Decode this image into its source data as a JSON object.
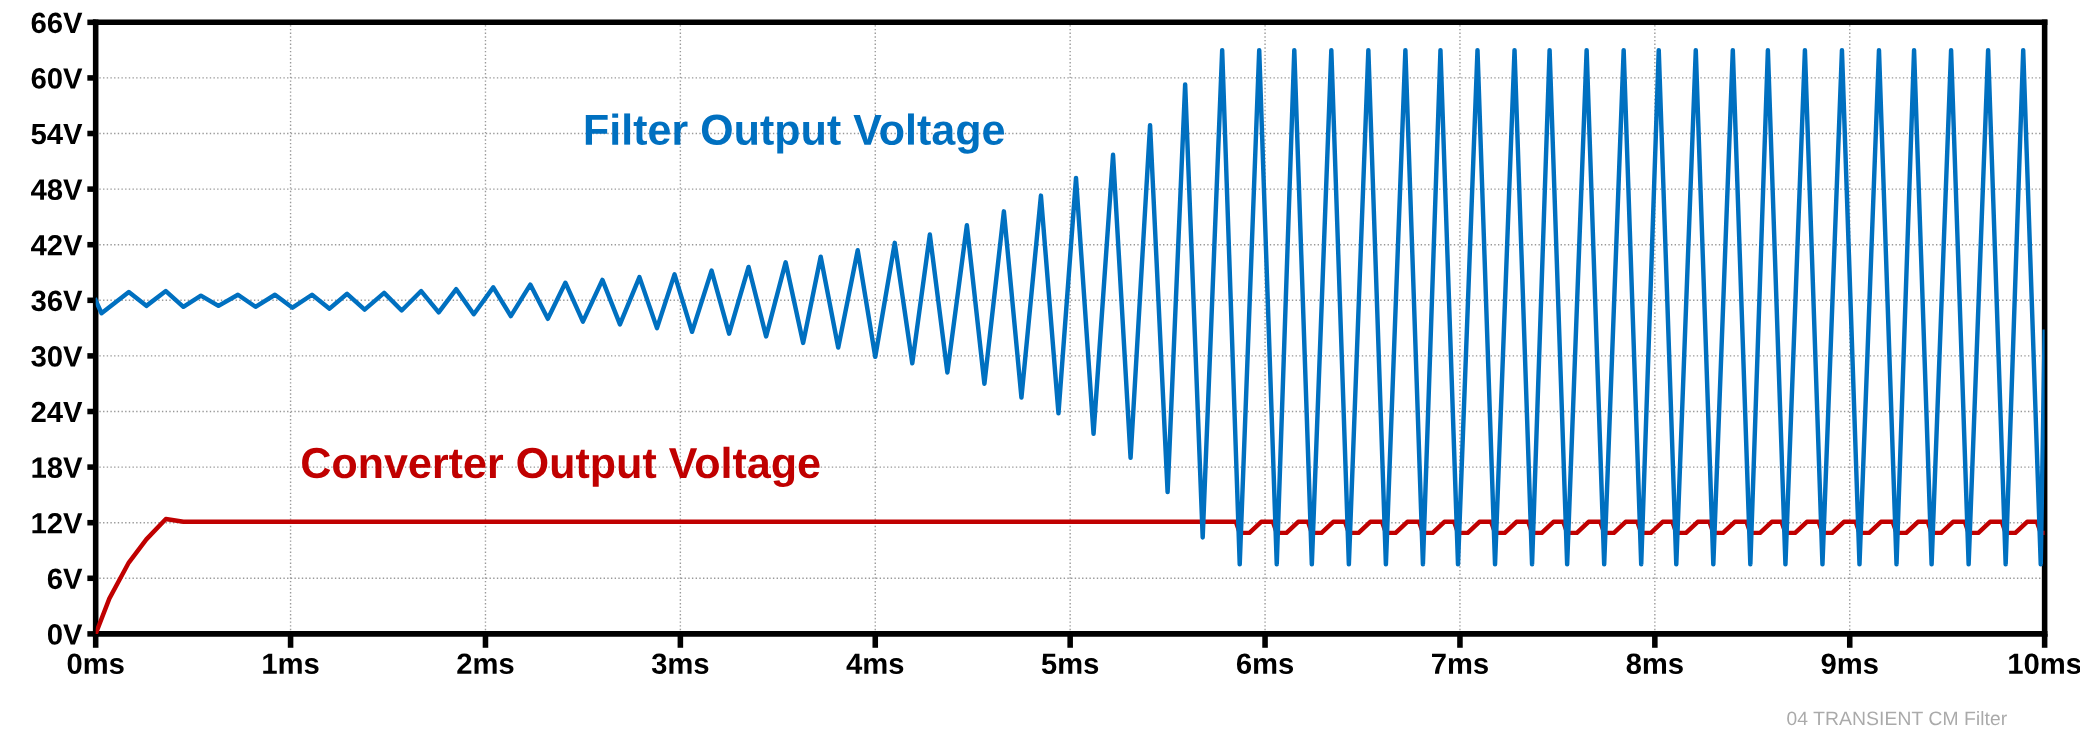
{
  "chart_data": {
    "type": "line",
    "xlim": [
      0,
      10
    ],
    "ylim": [
      0,
      66
    ],
    "xticks": [
      {
        "value": 0,
        "label": "0ms"
      },
      {
        "value": 1,
        "label": "1ms"
      },
      {
        "value": 2,
        "label": "2ms"
      },
      {
        "value": 3,
        "label": "3ms"
      },
      {
        "value": 4,
        "label": "4ms"
      },
      {
        "value": 5,
        "label": "5ms"
      },
      {
        "value": 6,
        "label": "6ms"
      },
      {
        "value": 7,
        "label": "7ms"
      },
      {
        "value": 8,
        "label": "8ms"
      },
      {
        "value": 9,
        "label": "9ms"
      },
      {
        "value": 10,
        "label": "10ms"
      }
    ],
    "yticks": [
      {
        "value": 0,
        "label": "0V"
      },
      {
        "value": 6,
        "label": "6V"
      },
      {
        "value": 12,
        "label": "12V"
      },
      {
        "value": 18,
        "label": "18V"
      },
      {
        "value": 24,
        "label": "24V"
      },
      {
        "value": 30,
        "label": "30V"
      },
      {
        "value": 36,
        "label": "36V"
      },
      {
        "value": 42,
        "label": "42V"
      },
      {
        "value": 48,
        "label": "48V"
      },
      {
        "value": 54,
        "label": "54V"
      },
      {
        "value": 60,
        "label": "60V"
      },
      {
        "value": 66,
        "label": "66V"
      }
    ],
    "grid": true,
    "legend": false,
    "marker": "none",
    "line_style": "solid",
    "annotations": [
      "04 TRANSIENT CM Filter"
    ],
    "series": [
      {
        "name": "Filter Output Voltage",
        "color": "#0070c0",
        "x": [
          0,
          0.03,
          0.17,
          0.26,
          0.36,
          0.45,
          0.54,
          0.63,
          0.73,
          0.82,
          0.92,
          1.01,
          1.11,
          1.2,
          1.29,
          1.38,
          1.48,
          1.57,
          1.67,
          1.76,
          1.85,
          1.94,
          2.04,
          2.13,
          2.23,
          2.32,
          2.41,
          2.5,
          2.6,
          2.69,
          2.79,
          2.88,
          2.97,
          3.06,
          3.16,
          3.25,
          3.35,
          3.44,
          3.54,
          3.63,
          3.72,
          3.81,
          3.91,
          4.0,
          4.1,
          4.19,
          4.28,
          4.37,
          4.47,
          4.56,
          4.66,
          4.75,
          4.85,
          4.94,
          5.03,
          5.12,
          5.22,
          5.31,
          5.41,
          5.5,
          5.59,
          5.68,
          5.78,
          5.87,
          5.97,
          6.06,
          6.15,
          6.24,
          6.34,
          6.43,
          6.53,
          6.62,
          6.72,
          6.81,
          6.9,
          6.99,
          7.09,
          7.18,
          7.28,
          7.37,
          7.46,
          7.55,
          7.65,
          7.74,
          7.84,
          7.93,
          8.02,
          8.11,
          8.21,
          8.3,
          8.4,
          8.49,
          8.58,
          8.67,
          8.77,
          8.86,
          8.96,
          9.05,
          9.15,
          9.24,
          9.33,
          9.42,
          9.52,
          9.61,
          9.71,
          9.8,
          9.89,
          9.98,
          10.0
        ],
        "values": [
          36,
          34.6,
          36.9,
          35.4,
          37.0,
          35.3,
          36.5,
          35.4,
          36.6,
          35.3,
          36.6,
          35.2,
          36.6,
          35.1,
          36.7,
          35.0,
          36.8,
          34.9,
          37.0,
          34.7,
          37.2,
          34.5,
          37.4,
          34.3,
          37.7,
          34.0,
          37.9,
          33.7,
          38.2,
          33.4,
          38.5,
          33.0,
          38.8,
          32.6,
          39.2,
          32.4,
          39.6,
          32.1,
          40.1,
          31.4,
          40.7,
          30.9,
          41.4,
          29.9,
          42.2,
          29.2,
          43.1,
          28.2,
          44.1,
          27.0,
          45.6,
          25.5,
          47.3,
          23.8,
          49.2,
          21.6,
          51.7,
          19.0,
          54.9,
          15.3,
          59.3,
          10.4,
          63.0,
          7.5,
          63.0,
          7.5,
          63.0,
          7.5,
          63.0,
          7.5,
          63.0,
          7.5,
          63.0,
          7.5,
          63.0,
          7.5,
          63.0,
          7.5,
          63.0,
          7.5,
          63.0,
          7.5,
          63.0,
          7.5,
          63.0,
          7.5,
          63.0,
          7.5,
          63.0,
          7.5,
          63.0,
          7.5,
          63.0,
          7.5,
          63.0,
          7.5,
          63.0,
          7.5,
          63.0,
          7.5,
          63.0,
          7.5,
          63.0,
          7.5,
          63.0,
          7.5,
          63.0,
          7.5,
          32.6
        ]
      },
      {
        "name": "Converter Output Voltage",
        "color": "#c00000",
        "x": [
          0,
          0.07,
          0.17,
          0.26,
          0.36,
          0.45,
          5.85,
          5.87,
          5.92,
          5.98,
          6.04,
          6.06,
          6.11,
          6.17,
          6.22,
          6.24,
          6.29,
          6.35,
          6.41,
          6.43,
          6.48,
          6.54,
          6.6,
          6.62,
          6.67,
          6.73,
          6.79,
          6.81,
          6.86,
          6.92,
          6.97,
          6.99,
          7.04,
          7.1,
          7.16,
          7.18,
          7.23,
          7.29,
          7.35,
          7.37,
          7.42,
          7.48,
          7.53,
          7.55,
          7.6,
          7.66,
          7.72,
          7.74,
          7.79,
          7.85,
          7.91,
          7.93,
          7.98,
          8.04,
          8.09,
          8.11,
          8.16,
          8.22,
          8.28,
          8.3,
          8.35,
          8.41,
          8.47,
          8.49,
          8.54,
          8.6,
          8.65,
          8.67,
          8.72,
          8.78,
          8.84,
          8.86,
          8.91,
          8.97,
          9.03,
          9.05,
          9.1,
          9.16,
          9.22,
          9.24,
          9.29,
          9.35,
          9.4,
          9.42,
          9.47,
          9.53,
          9.59,
          9.61,
          9.66,
          9.72,
          9.78,
          9.8,
          9.85,
          9.91,
          9.96,
          9.98,
          10.0
        ],
        "values": [
          0,
          3.8,
          7.7,
          10.2,
          12.4,
          12.1,
          12.1,
          10.9,
          10.9,
          12.1,
          12.1,
          10.9,
          10.9,
          12.1,
          12.1,
          10.9,
          10.9,
          12.1,
          12.1,
          10.9,
          10.9,
          12.1,
          12.1,
          10.9,
          10.9,
          12.1,
          12.1,
          10.9,
          10.9,
          12.1,
          12.1,
          10.9,
          10.9,
          12.1,
          12.1,
          10.9,
          10.9,
          12.1,
          12.1,
          10.9,
          10.9,
          12.1,
          12.1,
          10.9,
          10.9,
          12.1,
          12.1,
          10.9,
          10.9,
          12.1,
          12.1,
          10.9,
          10.9,
          12.1,
          12.1,
          10.9,
          10.9,
          12.1,
          12.1,
          10.9,
          10.9,
          12.1,
          12.1,
          10.9,
          10.9,
          12.1,
          12.1,
          10.9,
          10.9,
          12.1,
          12.1,
          10.9,
          10.9,
          12.1,
          12.1,
          10.9,
          10.9,
          12.1,
          12.1,
          10.9,
          10.9,
          12.1,
          12.1,
          10.9,
          10.9,
          12.1,
          12.1,
          10.9,
          10.9,
          12.1,
          12.1,
          10.9,
          10.9,
          12.1,
          12.1,
          10.9,
          10.9
        ]
      }
    ]
  }
}
